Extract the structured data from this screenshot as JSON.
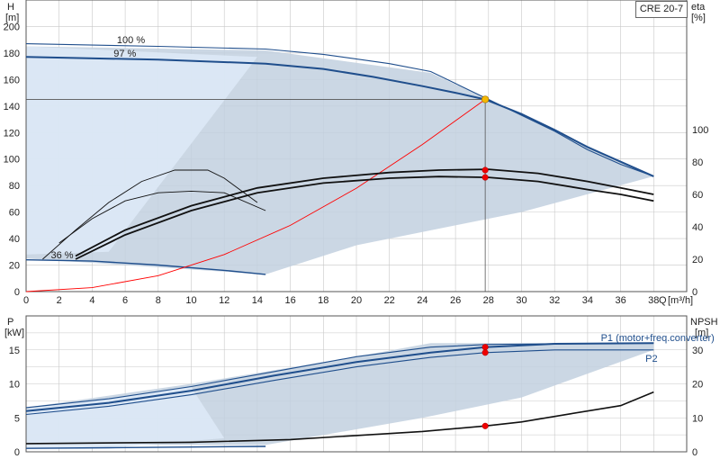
{
  "title": "CRE 20-7",
  "colors": {
    "curve": "#1f4e8c",
    "shade_light": "#dde9f6",
    "shade_dark": "#c2d0df",
    "eta": "#111111",
    "system": "#ff0000",
    "duty_point": "#f5b800",
    "marker": "#ee0000",
    "grid": "#c8c8c8"
  },
  "chart_data": [
    {
      "type": "line",
      "name": "top",
      "y_label": "H",
      "y_unit": "[m]",
      "y2_label": "eta",
      "y2_unit": "[%]",
      "x_label": "Q",
      "x_unit": "[m³/h]",
      "xlim": [
        0,
        40
      ],
      "ylim": [
        0,
        220
      ],
      "y2lim": [
        0,
        180
      ],
      "x_ticks": [
        0,
        2,
        4,
        6,
        8,
        10,
        12,
        14,
        16,
        18,
        20,
        22,
        24,
        26,
        28,
        30,
        32,
        34,
        36,
        38
      ],
      "y_ticks": [
        0,
        20,
        40,
        60,
        80,
        100,
        120,
        140,
        160,
        180,
        200
      ],
      "y2_ticks": [
        0,
        20,
        40,
        60,
        80,
        100
      ],
      "annotations": [
        {
          "text": "100 %",
          "x": 5.5,
          "y": 190
        },
        {
          "text": "97 %",
          "x": 5.3,
          "y": 180
        },
        {
          "text": "36 %",
          "x": 1.5,
          "y": 28
        }
      ],
      "operating_region": [
        [
          0,
          185
        ],
        [
          14.5,
          182
        ],
        [
          24.5,
          165
        ],
        [
          38,
          87
        ],
        [
          30,
          60
        ],
        [
          20,
          35
        ],
        [
          14.5,
          13
        ],
        [
          0,
          25
        ]
      ],
      "light_region": [
        [
          0,
          185
        ],
        [
          14,
          177
        ],
        [
          5,
          30
        ],
        [
          0,
          28
        ]
      ],
      "series": [
        {
          "role": "head_max",
          "x": [
            0,
            8,
            14.5,
            18,
            22,
            24.5,
            26,
            28,
            30,
            32,
            34,
            36,
            38
          ],
          "y": [
            187,
            185,
            183,
            179,
            172,
            166,
            157,
            145,
            133,
            121,
            107,
            96,
            87
          ]
        },
        {
          "role": "head_97",
          "x": [
            0,
            8,
            14.5,
            18,
            21,
            24,
            26,
            27.8,
            30,
            32,
            34,
            36,
            38
          ],
          "y": [
            177,
            175,
            172,
            168,
            162,
            155,
            150,
            145,
            134,
            122,
            109,
            98,
            87
          ]
        },
        {
          "role": "head_36",
          "x": [
            0,
            4,
            8,
            12,
            14.5
          ],
          "y": [
            24,
            23,
            20,
            16,
            13
          ]
        },
        {
          "role": "system",
          "x": [
            0,
            4,
            8,
            12,
            16,
            20,
            24,
            27.8
          ],
          "y": [
            0,
            3,
            12,
            28,
            50,
            78,
            111,
            145
          ]
        },
        {
          "role": "eta_max",
          "x": [
            3,
            6,
            10,
            14,
            18,
            22,
            25,
            28,
            31,
            34,
            36,
            38
          ],
          "y": [
            22,
            38,
            53,
            64,
            70,
            73.5,
            75,
            75.5,
            73,
            68,
            64,
            60
          ]
        },
        {
          "role": "eta_97",
          "x": [
            3,
            6,
            10,
            14,
            18,
            22,
            25,
            28,
            31,
            34,
            36,
            38
          ],
          "y": [
            20,
            35,
            50,
            61,
            67,
            70,
            71,
            70.5,
            68,
            63,
            60,
            56
          ]
        },
        {
          "role": "eta_mid",
          "x": [
            2,
            4,
            6,
            8,
            10,
            12,
            14.5
          ],
          "y": [
            30,
            45,
            56,
            61,
            62,
            61,
            50
          ]
        },
        {
          "role": "eta_low",
          "x": [
            1,
            3,
            5,
            7,
            9,
            11,
            12,
            14
          ],
          "y": [
            20,
            38,
            55,
            68,
            75,
            75,
            70,
            55
          ]
        }
      ],
      "duty_point": {
        "x": 27.8,
        "y": 145
      },
      "eta_markers": [
        {
          "x": 27.8,
          "y": 75
        },
        {
          "x": 27.8,
          "y": 70.5
        }
      ]
    },
    {
      "type": "line",
      "name": "bottom",
      "y_label": "P",
      "y_unit": "[kW]",
      "y2_label": "NPSH",
      "y2_unit": "[m]",
      "xlim": [
        0,
        40
      ],
      "ylim": [
        0,
        20
      ],
      "y2lim": [
        0,
        40
      ],
      "y_ticks": [
        0,
        5,
        10,
        15
      ],
      "y2_ticks": [
        0,
        10,
        20,
        30
      ],
      "legend": [
        {
          "text": "P1 (motor+freq.converter)",
          "x": 34.8,
          "y": 16.8
        },
        {
          "text": "P2",
          "x": 37.5,
          "y": 13.8
        }
      ],
      "operating_region": [
        [
          0,
          6.5
        ],
        [
          10,
          10
        ],
        [
          20,
          14
        ],
        [
          24.5,
          16
        ],
        [
          38,
          16
        ],
        [
          38,
          15
        ],
        [
          30,
          8
        ],
        [
          24,
          5
        ],
        [
          14.5,
          1
        ],
        [
          0,
          1
        ]
      ],
      "light_region": [
        [
          0,
          6.3
        ],
        [
          10,
          9.5
        ],
        [
          12,
          2
        ],
        [
          5,
          0.6
        ],
        [
          0,
          0.5
        ]
      ],
      "series": [
        {
          "role": "p1_max",
          "x": [
            0,
            5,
            10,
            15,
            20,
            24.5,
            28,
            32,
            38
          ],
          "y": [
            6.5,
            7.8,
            9.6,
            11.8,
            14.0,
            15.4,
            15.8,
            15.9,
            16.0
          ]
        },
        {
          "role": "p1_97",
          "x": [
            0,
            5,
            10,
            15,
            20,
            24.5,
            27.8,
            32,
            38
          ],
          "y": [
            6.0,
            7.2,
            9.0,
            11.2,
            13.2,
            14.6,
            15.4,
            15.9,
            16.0
          ]
        },
        {
          "role": "p2",
          "x": [
            0,
            5,
            10,
            15,
            20,
            24.5,
            27.8,
            32,
            38
          ],
          "y": [
            5.5,
            6.7,
            8.4,
            10.5,
            12.5,
            13.9,
            14.6,
            15.0,
            15.0
          ]
        },
        {
          "role": "p_36",
          "x": [
            0,
            5,
            10,
            14.5
          ],
          "y": [
            0.5,
            0.6,
            0.7,
            0.8
          ]
        },
        {
          "role": "npsh",
          "x": [
            0,
            10,
            16,
            20,
            24,
            27.8,
            30,
            33,
            36,
            38
          ],
          "y": [
            1.2,
            1.4,
            1.8,
            2.4,
            3.0,
            3.8,
            4.4,
            5.6,
            6.8,
            8.8
          ]
        }
      ],
      "p_markers": [
        {
          "x": 27.8,
          "y": 15.4
        },
        {
          "x": 27.8,
          "y": 14.6
        }
      ],
      "npsh_marker": {
        "x": 27.8,
        "y": 3.8
      }
    }
  ]
}
